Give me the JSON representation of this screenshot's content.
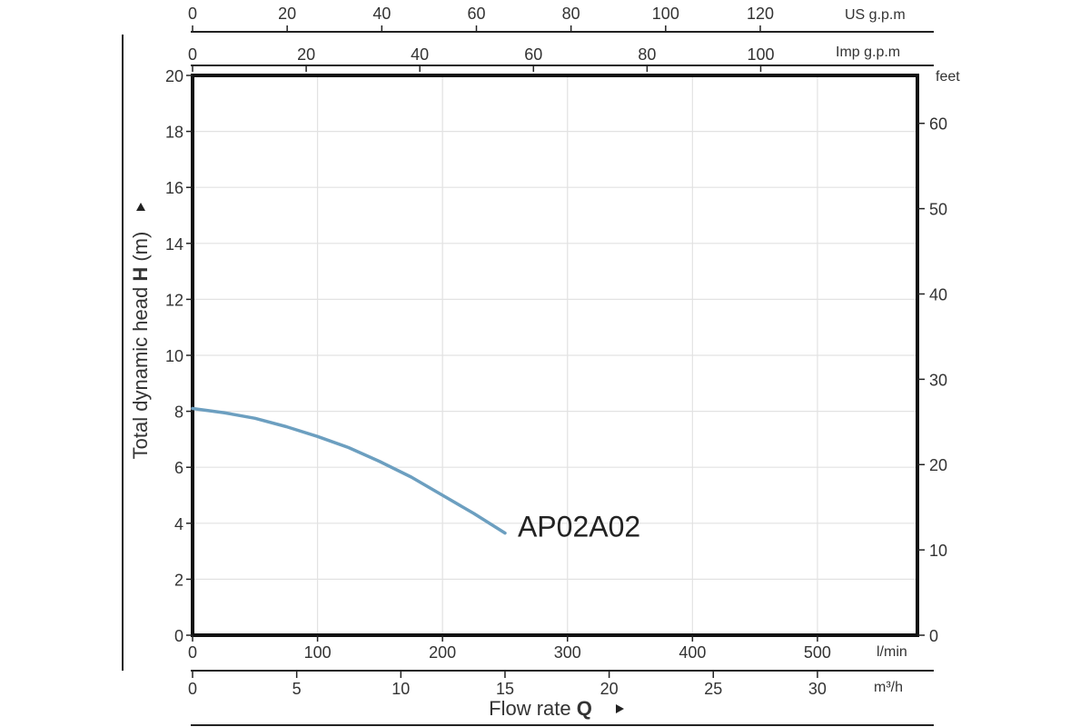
{
  "chart_data": {
    "type": "line",
    "ylabel_text": "Total dynamic head ",
    "ylabel_bold": "H",
    "ylabel_unit": " (m)",
    "xlabel_text": "Flow rate ",
    "xlabel_bold": "Q",
    "xlim": [
      0,
      580
    ],
    "ylim": [
      0,
      20
    ],
    "y_ticks": [
      0,
      2,
      4,
      6,
      8,
      10,
      12,
      14,
      16,
      18,
      20
    ],
    "x_ticks_lmin": [
      0,
      100,
      200,
      300,
      400,
      500
    ],
    "x_unit_lmin": "l/min",
    "x_ticks_m3h": [
      0,
      5,
      10,
      15,
      20,
      25,
      30
    ],
    "x_unit_m3h": "m³/h",
    "top_ticks_usgpm": [
      0,
      20,
      40,
      60,
      80,
      100,
      120
    ],
    "top_unit_usgpm": "US g.p.m",
    "top_ticks_impgpm": [
      0,
      20,
      40,
      60,
      80,
      100
    ],
    "top_unit_impgpm": "Imp g.p.m",
    "right_ticks_feet": [
      0,
      10,
      20,
      30,
      40,
      50,
      60
    ],
    "right_unit": "feet",
    "grid": true,
    "series": [
      {
        "name": "AP02A02",
        "color": "#6c9fc0",
        "x": [
          0,
          25,
          50,
          75,
          100,
          125,
          150,
          175,
          200,
          225,
          250
        ],
        "y": [
          8.1,
          7.95,
          7.75,
          7.45,
          7.1,
          6.7,
          6.2,
          5.65,
          5.0,
          4.35,
          3.65
        ]
      }
    ]
  }
}
